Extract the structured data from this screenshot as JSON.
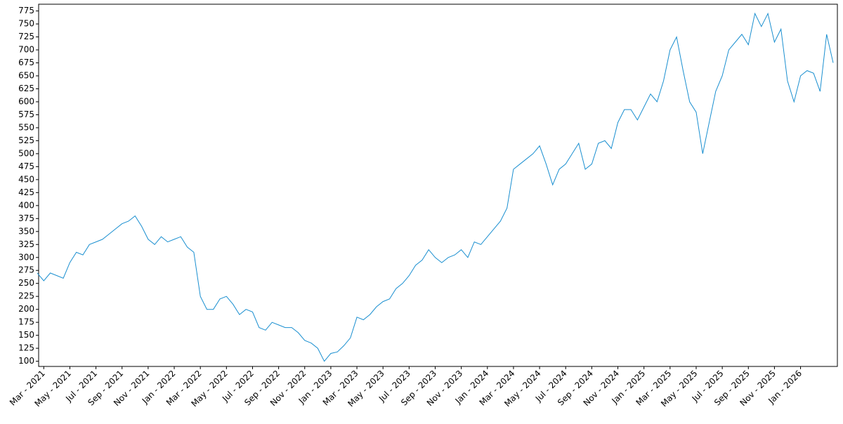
{
  "chart_data": {
    "type": "line",
    "categories": [
      null,
      "Mar - 2021",
      null,
      null,
      null,
      "May - 2021",
      null,
      null,
      null,
      "Jul - 2021",
      null,
      null,
      null,
      "Sep - 2021",
      null,
      null,
      null,
      "Nov - 2021",
      null,
      null,
      null,
      "Jan - 2022",
      null,
      null,
      null,
      "Mar - 2022",
      null,
      null,
      null,
      "May - 2022",
      null,
      null,
      null,
      "Jul - 2022",
      null,
      null,
      null,
      "Sep - 2022",
      null,
      null,
      null,
      "Nov - 2022",
      null,
      null,
      null,
      "Jan - 2023",
      null,
      null,
      null,
      "Mar - 2023",
      null,
      null,
      null,
      "May - 2023",
      null,
      null,
      null,
      "Jul - 2023",
      null,
      null,
      null,
      "Sep - 2023",
      null,
      null,
      null,
      "Nov - 2023",
      null,
      null,
      null,
      "Jan - 2024",
      null,
      null,
      null,
      "Mar - 2024",
      null,
      null,
      null,
      "May - 2024",
      null,
      null,
      null,
      "Jul - 2024",
      null,
      null,
      null,
      "Sep - 2024",
      null,
      null,
      null,
      "Nov - 2024",
      null,
      null,
      null,
      "Jan - 2025",
      null,
      null,
      null,
      "Mar - 2025",
      null,
      null,
      null,
      "May - 2025",
      null,
      null,
      null,
      "Jul - 2025",
      null,
      null,
      null,
      "Sep - 2025",
      null,
      null,
      null,
      "Nov - 2025",
      null,
      null,
      null,
      "Jan - 2026",
      null,
      null,
      null,
      null,
      null
    ],
    "series": [
      {
        "color": "#1a8fd0",
        "values": [
          270,
          255,
          270,
          265,
          260,
          290,
          310,
          305,
          325,
          330,
          335,
          345,
          355,
          365,
          370,
          380,
          360,
          335,
          325,
          340,
          330,
          335,
          340,
          320,
          310,
          225,
          200,
          200,
          220,
          225,
          210,
          190,
          200,
          195,
          165,
          160,
          175,
          170,
          165,
          165,
          155,
          140,
          135,
          125,
          100,
          115,
          118,
          130,
          145,
          185,
          180,
          190,
          205,
          215,
          220,
          240,
          250,
          265,
          285,
          295,
          315,
          300,
          290,
          300,
          305,
          315,
          300,
          330,
          325,
          340,
          355,
          370,
          395,
          470,
          480,
          490,
          500,
          515,
          480,
          440,
          470,
          480,
          500,
          520,
          470,
          480,
          520,
          525,
          510,
          560,
          585,
          585,
          565,
          590,
          615,
          600,
          640,
          700,
          725,
          660,
          600,
          580,
          500,
          560,
          620,
          650,
          700,
          715,
          730,
          710,
          770,
          745,
          770,
          715,
          740,
          640,
          600,
          650,
          660,
          655,
          620,
          730,
          675
        ]
      }
    ],
    "ylim": [
      90,
      788
    ],
    "yticks": [
      100,
      125,
      150,
      175,
      200,
      225,
      250,
      275,
      300,
      325,
      350,
      375,
      400,
      425,
      450,
      475,
      500,
      525,
      550,
      575,
      600,
      625,
      650,
      675,
      700,
      725,
      750,
      775
    ],
    "grid": false
  }
}
